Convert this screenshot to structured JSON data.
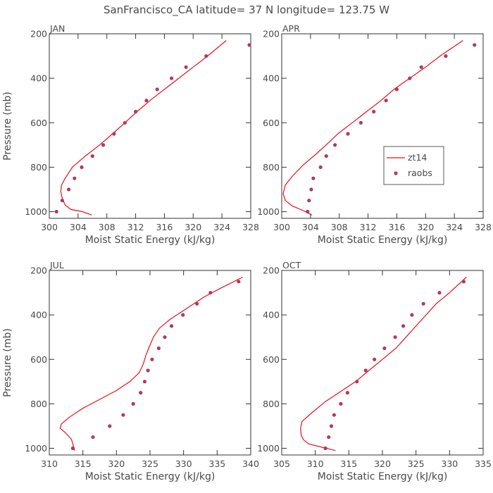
{
  "title": "SanFrancisco_CA  latitude= 37 N longitude= 123.75 W",
  "colors": {
    "model": "#e8101a",
    "obs": "#b03a5b",
    "text": "#4a4a4a",
    "axis": "#333333"
  },
  "chart_data": [
    {
      "type": "line",
      "panel_label": "JAN",
      "xlabel": "Moist Static Energy (kJ/kg)",
      "ylabel": "Pressure (mb)",
      "xlim": [
        300,
        328
      ],
      "ylim": [
        1030,
        200
      ],
      "xticks": [
        300,
        304,
        308,
        312,
        316,
        320,
        324,
        328
      ],
      "yticks": [
        200,
        400,
        600,
        800,
        1000
      ],
      "series": [
        {
          "name": "zt14",
          "kind": "line",
          "points": [
            [
              305.9,
              1015
            ],
            [
              304.6,
              1000
            ],
            [
              303,
              990
            ],
            [
              302.2,
              970
            ],
            [
              301.8,
              940
            ],
            [
              301.6,
              910
            ],
            [
              301.7,
              880
            ],
            [
              302.2,
              850
            ],
            [
              303.2,
              800
            ],
            [
              305,
              750
            ],
            [
              307,
              700
            ],
            [
              308.8,
              650
            ],
            [
              310.5,
              600
            ],
            [
              312.2,
              550
            ],
            [
              314,
              500
            ],
            [
              316,
              450
            ],
            [
              318,
              400
            ],
            [
              320,
              350
            ],
            [
              322,
              300
            ],
            [
              324.6,
              230
            ]
          ]
        },
        {
          "name": "raobs",
          "kind": "scatter",
          "points": [
            [
              301,
              1000
            ],
            [
              301.8,
              950
            ],
            [
              302.7,
              900
            ],
            [
              303.5,
              850
            ],
            [
              304.5,
              800
            ],
            [
              306,
              750
            ],
            [
              307.5,
              700
            ],
            [
              309,
              650
            ],
            [
              310.5,
              600
            ],
            [
              312,
              550
            ],
            [
              313.5,
              500
            ],
            [
              315,
              450
            ],
            [
              317,
              400
            ],
            [
              319,
              350
            ],
            [
              321.8,
              300
            ],
            [
              327.8,
              250
            ]
          ]
        }
      ]
    },
    {
      "type": "line",
      "panel_label": "APR",
      "xlabel": "Moist Static Energy (kJ/kg)",
      "ylabel": "",
      "xlim": [
        300,
        328
      ],
      "ylim": [
        1030,
        200
      ],
      "xticks": [
        300,
        304,
        308,
        312,
        316,
        320,
        324,
        328
      ],
      "yticks": [
        200,
        400,
        600,
        800,
        1000
      ],
      "show_legend": true,
      "series": [
        {
          "name": "zt14",
          "kind": "line",
          "points": [
            [
              304.2,
              1015
            ],
            [
              303,
              995
            ],
            [
              301.5,
              975
            ],
            [
              300.5,
              950
            ],
            [
              300.2,
              920
            ],
            [
              300.5,
              880
            ],
            [
              301.5,
              840
            ],
            [
              303,
              790
            ],
            [
              304.8,
              740
            ],
            [
              306.5,
              690
            ],
            [
              307.8,
              650
            ],
            [
              309.8,
              600
            ],
            [
              311.8,
              550
            ],
            [
              313.8,
              500
            ],
            [
              315.6,
              450
            ],
            [
              317.8,
              400
            ],
            [
              320,
              350
            ],
            [
              322,
              300
            ],
            [
              325.2,
              230
            ]
          ]
        },
        {
          "name": "raobs",
          "kind": "scatter",
          "points": [
            [
              303.6,
              1000
            ],
            [
              303.8,
              950
            ],
            [
              304.1,
              900
            ],
            [
              304.4,
              850
            ],
            [
              305.4,
              800
            ],
            [
              306.2,
              750
            ],
            [
              307.4,
              700
            ],
            [
              309.2,
              650
            ],
            [
              311,
              600
            ],
            [
              312.8,
              550
            ],
            [
              314.5,
              500
            ],
            [
              316,
              450
            ],
            [
              317.8,
              400
            ],
            [
              319.4,
              350
            ],
            [
              322.8,
              300
            ],
            [
              326.8,
              250
            ]
          ]
        }
      ]
    },
    {
      "type": "line",
      "panel_label": "JUL",
      "xlabel": "Moist Static Energy (kJ/kg)",
      "ylabel": "Pressure (mb)",
      "xlim": [
        310,
        340
      ],
      "ylim": [
        1030,
        200
      ],
      "xticks": [
        310,
        315,
        320,
        325,
        330,
        335,
        340
      ],
      "yticks": [
        200,
        400,
        600,
        800,
        1000
      ],
      "series": [
        {
          "name": "zt14",
          "kind": "line",
          "points": [
            [
              313.8,
              1010
            ],
            [
              313.6,
              990
            ],
            [
              313.3,
              960
            ],
            [
              312.4,
              930
            ],
            [
              311.6,
              910
            ],
            [
              311.8,
              890
            ],
            [
              313,
              860
            ],
            [
              315,
              820
            ],
            [
              317.5,
              780
            ],
            [
              320,
              740
            ],
            [
              322,
              700
            ],
            [
              323.4,
              660
            ],
            [
              324,
              620
            ],
            [
              324.4,
              580
            ],
            [
              324.8,
              550
            ],
            [
              325.5,
              500
            ],
            [
              326.4,
              460
            ],
            [
              328,
              420
            ],
            [
              330.5,
              370
            ],
            [
              333,
              320
            ],
            [
              335.5,
              280
            ],
            [
              338.8,
              230
            ]
          ]
        },
        {
          "name": "raobs",
          "kind": "scatter",
          "points": [
            [
              313.5,
              1000
            ],
            [
              316.5,
              950
            ],
            [
              319,
              900
            ],
            [
              321,
              850
            ],
            [
              322.5,
              800
            ],
            [
              323.6,
              750
            ],
            [
              324.2,
              700
            ],
            [
              324.7,
              650
            ],
            [
              325.3,
              600
            ],
            [
              326.3,
              550
            ],
            [
              327.2,
              500
            ],
            [
              328.2,
              450
            ],
            [
              329.9,
              400
            ],
            [
              332,
              350
            ],
            [
              334,
              300
            ],
            [
              338.2,
              250
            ]
          ]
        }
      ]
    },
    {
      "type": "line",
      "panel_label": "OCT",
      "xlabel": "Moist Static Energy (kJ/kg)",
      "ylabel": "",
      "xlim": [
        305,
        335
      ],
      "ylim": [
        1030,
        200
      ],
      "xticks": [
        305,
        310,
        315,
        320,
        325,
        330,
        335
      ],
      "yticks": [
        200,
        400,
        600,
        800,
        1000
      ],
      "series": [
        {
          "name": "zt14",
          "kind": "line",
          "points": [
            [
              313,
              1010
            ],
            [
              311,
              995
            ],
            [
              309,
              980
            ],
            [
              308.2,
              960
            ],
            [
              307.9,
              940
            ],
            [
              307.8,
              910
            ],
            [
              308,
              880
            ],
            [
              309.5,
              840
            ],
            [
              311.5,
              790
            ],
            [
              314,
              740
            ],
            [
              316,
              700
            ],
            [
              318,
              650
            ],
            [
              320,
              600
            ],
            [
              322,
              550
            ],
            [
              323.5,
              500
            ],
            [
              325,
              450
            ],
            [
              326.5,
              400
            ],
            [
              328,
              350
            ],
            [
              330,
              300
            ],
            [
              332.5,
              230
            ]
          ]
        },
        {
          "name": "raobs",
          "kind": "scatter",
          "points": [
            [
              311.5,
              1000
            ],
            [
              312,
              950
            ],
            [
              312.4,
              900
            ],
            [
              312.8,
              850
            ],
            [
              313.8,
              800
            ],
            [
              314.8,
              750
            ],
            [
              316.2,
              700
            ],
            [
              317.5,
              650
            ],
            [
              318.8,
              600
            ],
            [
              320.3,
              550
            ],
            [
              321.9,
              500
            ],
            [
              323.1,
              450
            ],
            [
              324.4,
              400
            ],
            [
              326.1,
              350
            ],
            [
              328.5,
              300
            ],
            [
              332.1,
              250
            ]
          ]
        }
      ]
    }
  ]
}
